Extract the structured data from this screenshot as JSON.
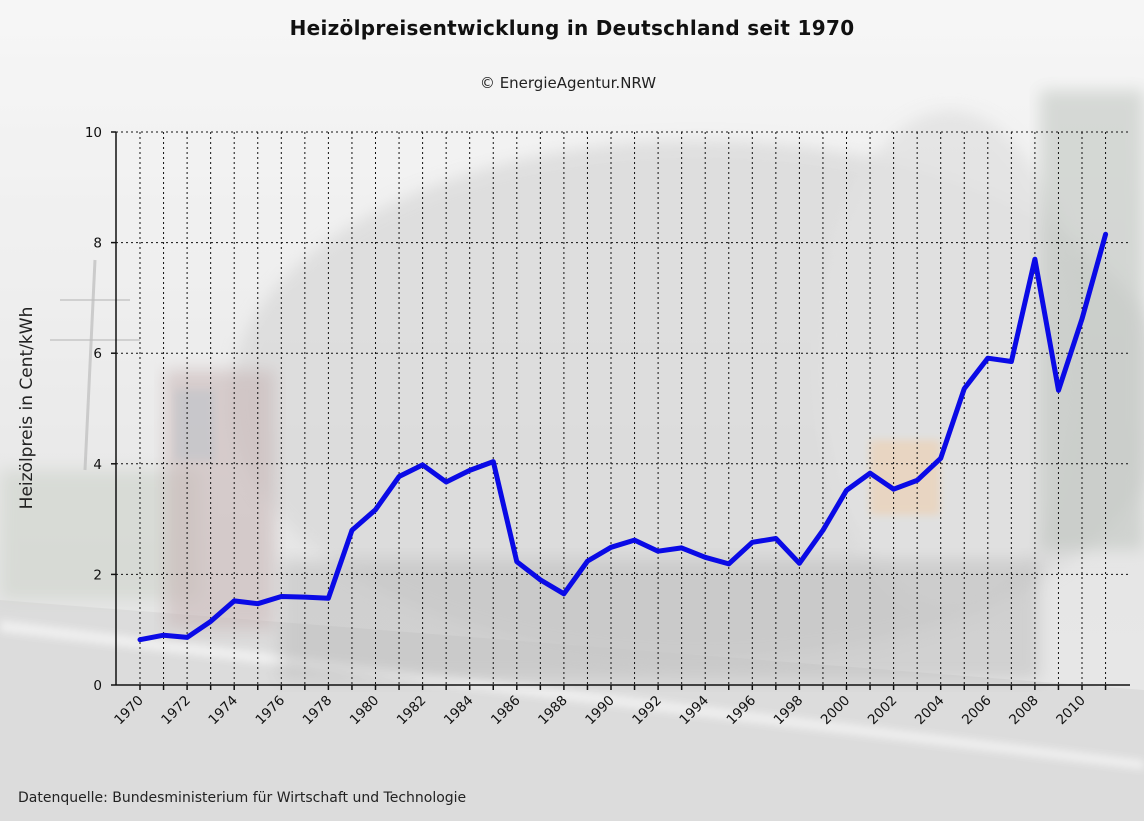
{
  "title": "Heizölpreisentwicklung in Deutschland seit 1970",
  "subtitle": "© EnergieAgentur.NRW",
  "source": "Datenquelle: Bundesministerium für Wirtschaft und Technologie",
  "colors": {
    "line": "#0a0ae6",
    "grid": "#111111",
    "axis": "#111111"
  },
  "chart_data": {
    "type": "line",
    "title": "Heizölpreisentwicklung in Deutschland seit 1970",
    "xlabel": "",
    "ylabel": "Heizölpreis in Cent/kWh",
    "xlim": [
      1969,
      1973
    ],
    "ylim": [
      0,
      10
    ],
    "yticks": [
      0,
      2,
      4,
      6,
      8,
      10
    ],
    "xtick_labels": [
      "1970",
      "1972",
      "1974",
      "1976",
      "1978",
      "1980",
      "1982",
      "1984",
      "1986",
      "1988",
      "1990",
      "1992",
      "1994",
      "1996",
      "1998",
      "2000",
      "2002",
      "2004",
      "2006",
      "2008",
      "2010"
    ],
    "grid": true,
    "x": [
      1970,
      1971,
      1972,
      1973,
      1974,
      1975,
      1976,
      1977,
      1978,
      1979,
      1980,
      1981,
      1982,
      1983,
      1984,
      1985,
      1986,
      1987,
      1988,
      1989,
      1990,
      1991,
      1992,
      1993,
      1994,
      1995,
      1996,
      1997,
      1998,
      1999,
      2000,
      2001,
      2002,
      2003,
      2004,
      2005,
      2006,
      2007,
      2008,
      2009,
      2010,
      2011
    ],
    "series": [
      {
        "values": [
          0.82,
          0.9,
          0.86,
          1.15,
          1.52,
          1.47,
          1.6,
          1.59,
          1.57,
          2.8,
          3.17,
          3.77,
          3.98,
          3.67,
          3.88,
          4.04,
          2.23,
          1.9,
          1.65,
          2.24,
          2.49,
          2.62,
          2.42,
          2.48,
          2.31,
          2.19,
          2.58,
          2.65,
          2.2,
          2.8,
          3.52,
          3.83,
          3.54,
          3.7,
          4.1,
          5.36,
          5.91,
          5.85,
          7.7,
          5.33,
          6.62,
          8.15
        ]
      }
    ]
  }
}
